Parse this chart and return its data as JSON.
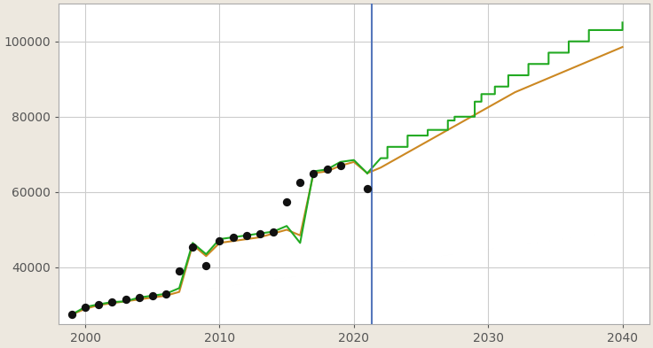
{
  "background_color": "#ede8df",
  "plot_bg_color": "#ffffff",
  "grid_color": "#cccccc",
  "xlim": [
    1998,
    2042
  ],
  "ylim": [
    25000,
    110000
  ],
  "xticks": [
    2000,
    2010,
    2020,
    2030,
    2040
  ],
  "yticks": [
    40000,
    60000,
    80000,
    100000
  ],
  "ytick_labels": [
    "40000",
    "60000",
    "80000",
    "100000"
  ],
  "vline_x": 2021.3,
  "vline_color": "#5577bb",
  "orange_color": "#cc8822",
  "green_color": "#22aa22",
  "dot_color": "#111111",
  "observed_dots": [
    [
      1999,
      27500
    ],
    [
      2000,
      29500
    ],
    [
      2001,
      30200
    ],
    [
      2002,
      30800
    ],
    [
      2003,
      31500
    ],
    [
      2004,
      32000
    ],
    [
      2005,
      32500
    ],
    [
      2006,
      33000
    ],
    [
      2007,
      39000
    ],
    [
      2008,
      45500
    ],
    [
      2009,
      40500
    ],
    [
      2010,
      47000
    ],
    [
      2011,
      48000
    ],
    [
      2012,
      48500
    ],
    [
      2013,
      49000
    ],
    [
      2014,
      49500
    ],
    [
      2015,
      57500
    ],
    [
      2016,
      62500
    ],
    [
      2017,
      65000
    ],
    [
      2018,
      66000
    ],
    [
      2019,
      67000
    ],
    [
      2021,
      61000
    ]
  ],
  "orange_line": [
    [
      1999,
      27500
    ],
    [
      2000,
      29000
    ],
    [
      2001,
      30000
    ],
    [
      2002,
      30500
    ],
    [
      2003,
      31000
    ],
    [
      2004,
      31500
    ],
    [
      2005,
      32000
    ],
    [
      2006,
      32500
    ],
    [
      2007,
      33500
    ],
    [
      2008,
      46000
    ],
    [
      2009,
      43000
    ],
    [
      2010,
      46500
    ],
    [
      2011,
      47000
    ],
    [
      2012,
      47500
    ],
    [
      2013,
      48000
    ],
    [
      2014,
      49000
    ],
    [
      2015,
      50000
    ],
    [
      2016,
      48500
    ],
    [
      2017,
      65000
    ],
    [
      2018,
      65500
    ],
    [
      2019,
      67000
    ],
    [
      2020,
      68000
    ],
    [
      2021,
      65000
    ],
    [
      2022,
      66500
    ],
    [
      2023,
      68500
    ],
    [
      2024,
      70500
    ],
    [
      2025,
      72500
    ],
    [
      2026,
      74500
    ],
    [
      2027,
      76500
    ],
    [
      2028,
      78500
    ],
    [
      2029,
      80500
    ],
    [
      2030,
      82500
    ],
    [
      2031,
      84500
    ],
    [
      2032,
      86500
    ],
    [
      2033,
      88000
    ],
    [
      2034,
      89500
    ],
    [
      2035,
      91000
    ],
    [
      2036,
      92500
    ],
    [
      2037,
      94000
    ],
    [
      2038,
      95500
    ],
    [
      2039,
      97000
    ],
    [
      2040,
      98500
    ]
  ],
  "green_line_smooth": [
    [
      1999,
      27500
    ],
    [
      2000,
      29500
    ],
    [
      2001,
      30200
    ],
    [
      2002,
      30800
    ],
    [
      2003,
      31000
    ],
    [
      2004,
      32000
    ],
    [
      2005,
      32500
    ],
    [
      2006,
      33000
    ],
    [
      2007,
      34500
    ],
    [
      2008,
      46500
    ],
    [
      2009,
      43500
    ],
    [
      2010,
      47500
    ],
    [
      2011,
      48000
    ],
    [
      2012,
      48500
    ],
    [
      2013,
      49000
    ],
    [
      2014,
      49500
    ],
    [
      2015,
      51000
    ],
    [
      2016,
      46500
    ],
    [
      2017,
      65500
    ],
    [
      2018,
      66000
    ],
    [
      2019,
      68000
    ],
    [
      2020,
      68500
    ],
    [
      2021,
      65000
    ]
  ],
  "green_line_stepped": [
    [
      2021,
      65000
    ],
    [
      2022,
      69000
    ],
    [
      2022.5,
      69000
    ],
    [
      2022.5,
      72000
    ],
    [
      2024,
      72000
    ],
    [
      2024,
      75000
    ],
    [
      2025.5,
      75000
    ],
    [
      2025.5,
      76500
    ],
    [
      2027,
      76500
    ],
    [
      2027,
      79000
    ],
    [
      2027.5,
      79000
    ],
    [
      2027.5,
      80000
    ],
    [
      2029,
      80000
    ],
    [
      2029,
      84000
    ],
    [
      2029.5,
      84000
    ],
    [
      2029.5,
      86000
    ],
    [
      2030.5,
      86000
    ],
    [
      2030.5,
      88000
    ],
    [
      2031.5,
      88000
    ],
    [
      2031.5,
      91000
    ],
    [
      2033,
      91000
    ],
    [
      2033,
      94000
    ],
    [
      2034.5,
      94000
    ],
    [
      2034.5,
      97000
    ],
    [
      2036,
      97000
    ],
    [
      2036,
      100000
    ],
    [
      2037.5,
      100000
    ],
    [
      2037.5,
      103000
    ],
    [
      2040,
      103000
    ],
    [
      2040,
      105000
    ]
  ]
}
